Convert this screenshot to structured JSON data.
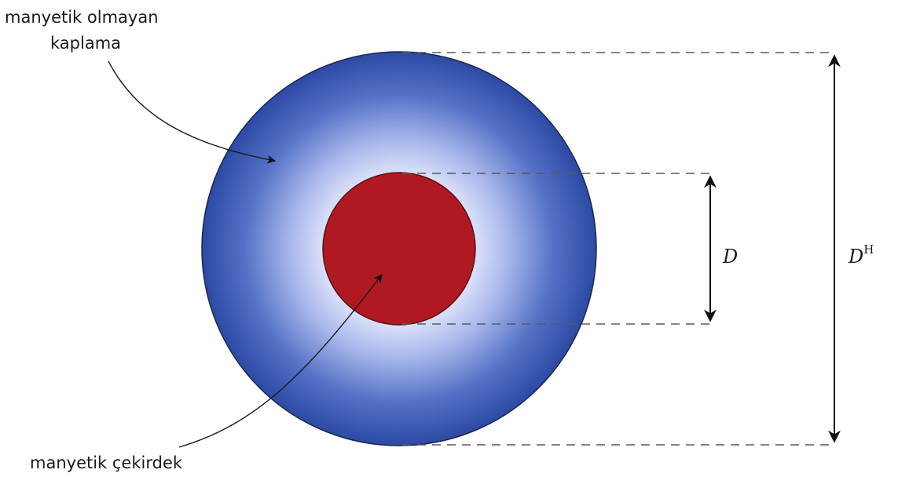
{
  "labels": {
    "coating_line1": "manyetik olmayan",
    "coating_line2": "kaplama",
    "core": "manyetik çekirdek",
    "inner_diameter": "D",
    "outer_diameter_base": "D",
    "outer_diameter_sup": "H"
  },
  "colors": {
    "coating_outer": "#2e4ea8",
    "coating_inner": "#ffffff",
    "core_fill": "#b01922",
    "core_stroke": "#5a1014",
    "outline": "#1a2850"
  }
}
